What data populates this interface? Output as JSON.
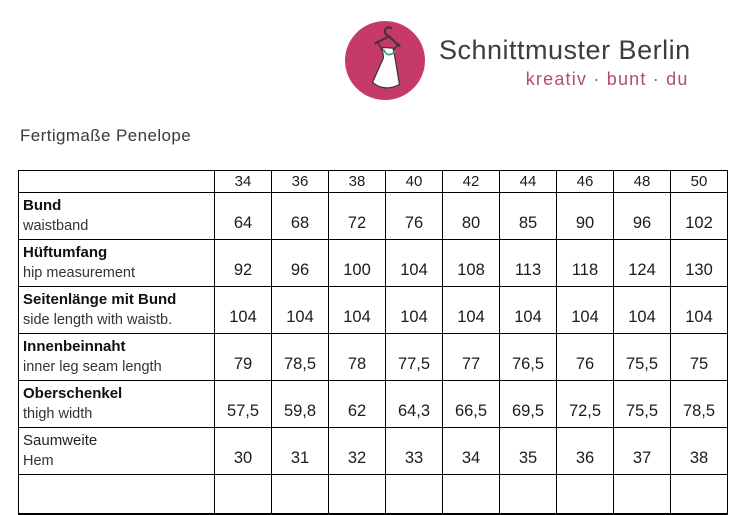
{
  "brand": {
    "name": "Schnittmuster Berlin",
    "tagline": "kreativ · bunt · du",
    "logo_icon": "dress-on-hanger",
    "colors": {
      "logo_circle": "#c63a68",
      "brand_name_text": "#3d3d3d",
      "tagline_text": "#b04e72",
      "necklace_accent": "#37a08e"
    }
  },
  "page_title": "Fertigmaße Penelope",
  "chart_data": {
    "type": "table",
    "title": "Fertigmaße Penelope",
    "corner_cell": "",
    "sizes": [
      "34",
      "36",
      "38",
      "40",
      "42",
      "44",
      "46",
      "48",
      "50"
    ],
    "rows": [
      {
        "label_de": "Bund",
        "label_en": "waistband",
        "bold_de": true,
        "values": [
          "64",
          "68",
          "72",
          "76",
          "80",
          "85",
          "90",
          "96",
          "102"
        ]
      },
      {
        "label_de": "Hüftumfang",
        "label_en": "hip measurement",
        "bold_de": true,
        "values": [
          "92",
          "96",
          "100",
          "104",
          "108",
          "113",
          "118",
          "124",
          "130"
        ]
      },
      {
        "label_de": "Seitenlänge mit Bund",
        "label_en": "side length with waistb.",
        "bold_de": true,
        "values": [
          "104",
          "104",
          "104",
          "104",
          "104",
          "104",
          "104",
          "104",
          "104"
        ]
      },
      {
        "label_de": "Innenbeinnaht",
        "label_en": "inner leg seam length",
        "bold_de": true,
        "values": [
          "79",
          "78,5",
          "78",
          "77,5",
          "77",
          "76,5",
          "76",
          "75,5",
          "75"
        ]
      },
      {
        "label_de": "Oberschenkel",
        "label_en": "thigh width",
        "bold_de": true,
        "values": [
          "57,5",
          "59,8",
          "62",
          "64,3",
          "66,5",
          "69,5",
          "72,5",
          "75,5",
          "78,5"
        ]
      },
      {
        "label_de": "Saumweite",
        "label_en": "Hem",
        "bold_de": false,
        "values": [
          "30",
          "31",
          "32",
          "33",
          "34",
          "35",
          "36",
          "37",
          "38"
        ]
      }
    ],
    "empty_trailing_row": true,
    "grid": true
  }
}
